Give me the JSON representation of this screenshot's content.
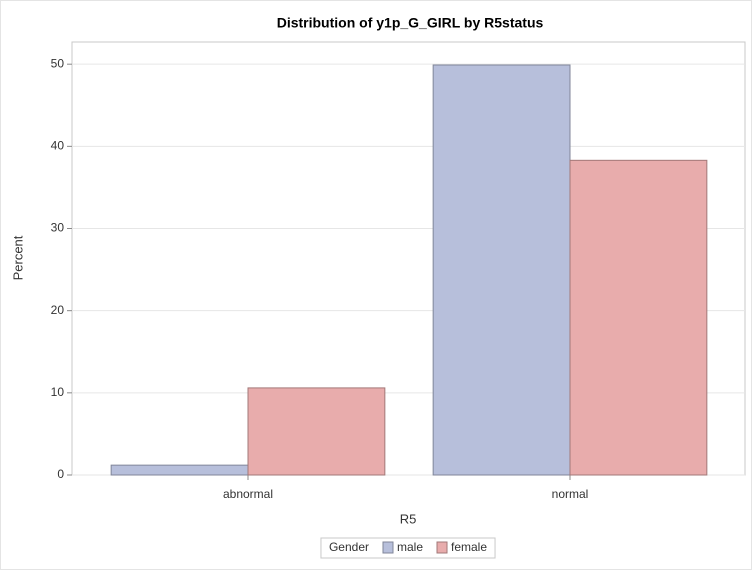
{
  "chart_data": {
    "type": "bar",
    "title": "Distribution of y1p_G_GIRL by R5status",
    "x_label": "R5",
    "y_label": "Percent",
    "categories": [
      "abnormal",
      "normal"
    ],
    "series": [
      {
        "name": "male",
        "color": "#b7bfdb",
        "values": [
          1.2,
          49.9
        ]
      },
      {
        "name": "female",
        "color": "#e8acac",
        "values": [
          10.6,
          38.3
        ]
      }
    ],
    "legend_title": "Gender",
    "ylim": [
      0,
      52.7
    ],
    "yticks": [
      0,
      10,
      20,
      30,
      40,
      50
    ],
    "grid": true,
    "legend": "bottom"
  }
}
